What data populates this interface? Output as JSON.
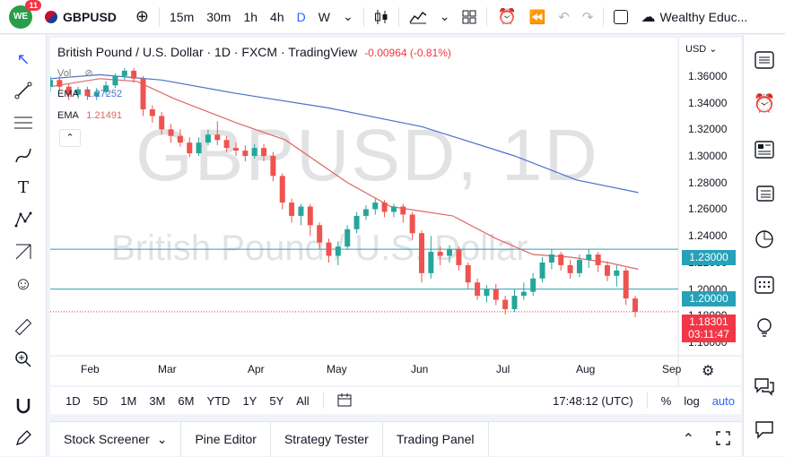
{
  "topbar": {
    "badge": "11",
    "logo_text": "WE",
    "symbol": "GBPUSD",
    "intervals": [
      "15m",
      "30m",
      "1h",
      "4h",
      "D",
      "W"
    ],
    "active_interval": "D",
    "account": "Wealthy Educ..."
  },
  "legend": {
    "title": "British Pound / U.S. Dollar · 1D · FXCM · TradingView",
    "change": "-0.00964 (-0.81%)",
    "vol": "Vol",
    "ema1_label": "EMA",
    "ema1_value": "1.27252",
    "ema2_label": "EMA",
    "ema2_value": "1.21491"
  },
  "watermark": {
    "line1": "GBPUSD, 1D",
    "line2": "British Pound / U.S. Dollar"
  },
  "currency": "USD",
  "colors": {
    "up": "#26a69a",
    "down": "#ef5350",
    "ema_fast": "#e06666",
    "ema_slow": "#4a72c8",
    "hline": "#26a1b8",
    "current": "#f23645"
  },
  "price_axis": [
    "1.36000",
    "1.34000",
    "1.32000",
    "1.30000",
    "1.28000",
    "1.26000",
    "1.24000",
    "1.22000",
    "1.20000",
    "1.18000",
    "1.16000"
  ],
  "tags": {
    "level_high": "1.23000",
    "level_low": "1.20000",
    "current_price": "1.18301",
    "countdown": "03:11:47"
  },
  "time_axis": [
    "Feb",
    "Mar",
    "Apr",
    "May",
    "Jun",
    "Jul",
    "Aug",
    "Sep"
  ],
  "chart_data": {
    "type": "candlestick",
    "ylim": [
      1.15,
      1.372
    ],
    "xlim": [
      0,
      100
    ],
    "horizontal_levels": [
      1.23,
      1.2
    ],
    "current_price": 1.18301,
    "ema_slow": [
      [
        0,
        1.358
      ],
      [
        8,
        1.361
      ],
      [
        18,
        1.357
      ],
      [
        30,
        1.347
      ],
      [
        45,
        1.336
      ],
      [
        60,
        1.322
      ],
      [
        75,
        1.3
      ],
      [
        85,
        1.282
      ],
      [
        95,
        1.2725
      ]
    ],
    "ema_fast": [
      [
        0,
        1.352
      ],
      [
        8,
        1.358
      ],
      [
        14,
        1.356
      ],
      [
        20,
        1.343
      ],
      [
        30,
        1.325
      ],
      [
        38,
        1.312
      ],
      [
        48,
        1.28
      ],
      [
        55,
        1.262
      ],
      [
        65,
        1.255
      ],
      [
        72,
        1.238
      ],
      [
        78,
        1.226
      ],
      [
        84,
        1.224
      ],
      [
        90,
        1.22
      ],
      [
        95,
        1.2149
      ]
    ],
    "candles": [
      [
        0,
        1.352,
        1.357,
        1.36,
        1.348
      ],
      [
        1.5,
        1.357,
        1.352,
        1.36,
        1.349
      ],
      [
        3,
        1.352,
        1.346,
        1.354,
        1.342
      ],
      [
        4.5,
        1.346,
        1.35,
        1.352,
        1.343
      ],
      [
        6,
        1.35,
        1.345,
        1.352,
        1.342
      ],
      [
        7.5,
        1.345,
        1.348,
        1.351,
        1.342
      ],
      [
        9,
        1.348,
        1.353,
        1.356,
        1.346
      ],
      [
        10.5,
        1.353,
        1.36,
        1.362,
        1.351
      ],
      [
        12,
        1.36,
        1.364,
        1.366,
        1.357
      ],
      [
        13.5,
        1.364,
        1.358,
        1.366,
        1.355
      ],
      [
        15,
        1.358,
        1.335,
        1.36,
        1.33
      ],
      [
        16.5,
        1.335,
        1.33,
        1.338,
        1.325
      ],
      [
        18,
        1.33,
        1.32,
        1.333,
        1.316
      ],
      [
        19.5,
        1.32,
        1.315,
        1.324,
        1.31
      ],
      [
        21,
        1.315,
        1.31,
        1.32,
        1.307
      ],
      [
        22.5,
        1.31,
        1.302,
        1.314,
        1.299
      ],
      [
        24,
        1.302,
        1.31,
        1.314,
        1.3
      ],
      [
        25.5,
        1.31,
        1.316,
        1.32,
        1.308
      ],
      [
        27,
        1.316,
        1.312,
        1.326,
        1.308
      ],
      [
        28.5,
        1.312,
        1.306,
        1.315,
        1.303
      ],
      [
        30,
        1.306,
        1.304,
        1.31,
        1.3
      ],
      [
        31.5,
        1.304,
        1.3,
        1.308,
        1.296
      ],
      [
        33,
        1.3,
        1.306,
        1.309,
        1.298
      ],
      [
        34.5,
        1.306,
        1.3,
        1.309,
        1.296
      ],
      [
        36,
        1.3,
        1.285,
        1.303,
        1.281
      ],
      [
        37.5,
        1.285,
        1.265,
        1.287,
        1.26
      ],
      [
        39,
        1.265,
        1.255,
        1.268,
        1.25
      ],
      [
        40.5,
        1.255,
        1.262,
        1.264,
        1.248
      ],
      [
        42,
        1.262,
        1.248,
        1.264,
        1.24
      ],
      [
        43.5,
        1.248,
        1.235,
        1.25,
        1.23
      ],
      [
        45,
        1.235,
        1.225,
        1.238,
        1.22
      ],
      [
        46.5,
        1.225,
        1.232,
        1.236,
        1.218
      ],
      [
        48,
        1.232,
        1.245,
        1.248,
        1.23
      ],
      [
        49.5,
        1.245,
        1.255,
        1.258,
        1.242
      ],
      [
        51,
        1.255,
        1.26,
        1.263,
        1.252
      ],
      [
        52.5,
        1.26,
        1.265,
        1.268,
        1.256
      ],
      [
        54,
        1.265,
        1.258,
        1.267,
        1.254
      ],
      [
        55.5,
        1.258,
        1.262,
        1.264,
        1.254
      ],
      [
        57,
        1.262,
        1.256,
        1.264,
        1.25
      ],
      [
        58.5,
        1.256,
        1.242,
        1.258,
        1.237
      ],
      [
        60,
        1.242,
        1.212,
        1.244,
        1.205
      ],
      [
        61.5,
        1.212,
        1.228,
        1.24,
        1.208
      ],
      [
        63,
        1.228,
        1.225,
        1.232,
        1.218
      ],
      [
        64.5,
        1.225,
        1.23,
        1.233,
        1.22
      ],
      [
        66,
        1.23,
        1.218,
        1.232,
        1.214
      ],
      [
        67.5,
        1.218,
        1.205,
        1.22,
        1.2
      ],
      [
        69,
        1.205,
        1.195,
        1.208,
        1.192
      ],
      [
        70.5,
        1.195,
        1.2,
        1.203,
        1.19
      ],
      [
        72,
        1.2,
        1.192,
        1.204,
        1.188
      ],
      [
        73.5,
        1.192,
        1.185,
        1.195,
        1.181
      ],
      [
        75,
        1.185,
        1.195,
        1.2,
        1.183
      ],
      [
        76.5,
        1.195,
        1.198,
        1.205,
        1.192
      ],
      [
        78,
        1.198,
        1.208,
        1.212,
        1.195
      ],
      [
        79.5,
        1.208,
        1.22,
        1.224,
        1.205
      ],
      [
        81,
        1.22,
        1.226,
        1.23,
        1.215
      ],
      [
        82.5,
        1.226,
        1.218,
        1.228,
        1.214
      ],
      [
        84,
        1.218,
        1.212,
        1.222,
        1.208
      ],
      [
        85.5,
        1.212,
        1.222,
        1.226,
        1.209
      ],
      [
        87,
        1.222,
        1.226,
        1.23,
        1.216
      ],
      [
        88.5,
        1.226,
        1.218,
        1.228,
        1.213
      ],
      [
        90,
        1.218,
        1.21,
        1.221,
        1.206
      ],
      [
        91.5,
        1.21,
        1.214,
        1.218,
        1.202
      ],
      [
        93,
        1.214,
        1.193,
        1.216,
        1.188
      ],
      [
        94.5,
        1.193,
        1.183,
        1.195,
        1.179
      ]
    ]
  },
  "bottombar": {
    "ranges": [
      "1D",
      "5D",
      "1M",
      "3M",
      "6M",
      "YTD",
      "1Y",
      "5Y",
      "All"
    ],
    "clock": "17:48:12 (UTC)",
    "percent": "%",
    "log": "log",
    "auto": "auto"
  },
  "panels": [
    "Stock Screener",
    "Pine Editor",
    "Strategy Tester",
    "Trading Panel"
  ]
}
